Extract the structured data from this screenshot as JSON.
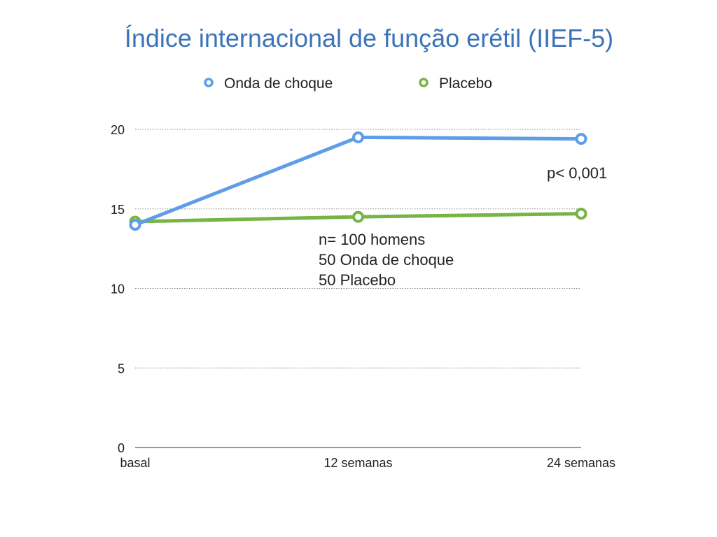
{
  "chart_data": {
    "type": "line",
    "title": "Índice internacional de função erétil (IIEF-5)",
    "xlabel": "",
    "ylabel": "",
    "categories": [
      "basal",
      "12 semanas",
      "24 semanas"
    ],
    "ylim": [
      0,
      20
    ],
    "yticks": [
      "0",
      "5",
      "10",
      "15",
      "20"
    ],
    "grid": true,
    "legend_position": "top",
    "series": [
      {
        "name": "Onda de choque",
        "color": "#5f9de8",
        "values": [
          14.0,
          19.5,
          19.4
        ]
      },
      {
        "name": "Placebo",
        "color": "#76b443",
        "values": [
          14.2,
          14.5,
          14.7
        ]
      }
    ],
    "annotations": {
      "pvalue": "p< 0,001",
      "sample": [
        "n= 100 homens",
        "50 Onda de choque",
        "50 Placebo"
      ]
    }
  }
}
